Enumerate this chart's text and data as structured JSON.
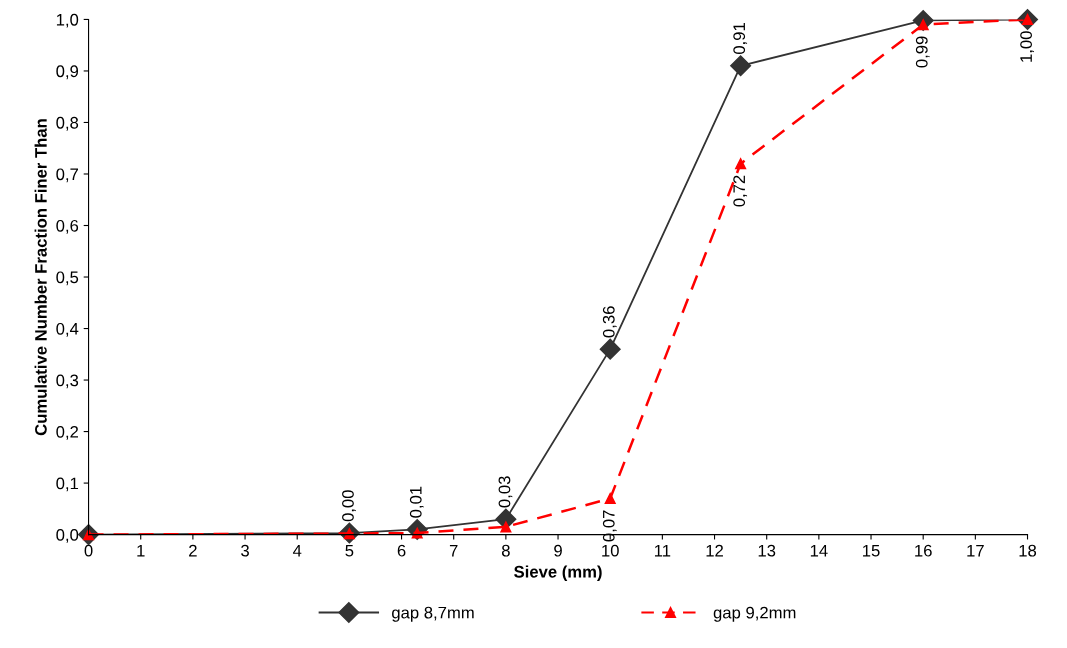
{
  "chart_data": {
    "type": "line",
    "xlabel": "Sieve (mm)",
    "ylabel": "Cumulative Number Fraction Finer Than",
    "xlim": [
      0,
      18
    ],
    "xticks": [
      0,
      1,
      2,
      3,
      4,
      5,
      6,
      7,
      8,
      9,
      10,
      11,
      12,
      13,
      14,
      15,
      16,
      17,
      18
    ],
    "ylim": [
      0,
      1
    ],
    "yticks": [
      {
        "value": 0,
        "label": "0,0"
      },
      {
        "value": 0.1,
        "label": "0,1"
      },
      {
        "value": 0.2,
        "label": "0,2"
      },
      {
        "value": 0.3,
        "label": "0,3"
      },
      {
        "value": 0.4,
        "label": "0,4"
      },
      {
        "value": 0.5,
        "label": "0,5"
      },
      {
        "value": 0.6,
        "label": "0,6"
      },
      {
        "value": 0.7,
        "label": "0,7"
      },
      {
        "value": 0.8,
        "label": "0,8"
      },
      {
        "value": 0.9,
        "label": "0,9"
      },
      {
        "value": 1,
        "label": "1,0"
      }
    ],
    "grid": false,
    "legend": "bottom",
    "series": [
      {
        "name": "gap 8,7mm",
        "color": "#333333",
        "marker": "diamond",
        "line_style": "solid",
        "x": [
          0,
          5,
          6.3,
          8,
          10,
          12.5,
          16,
          18
        ],
        "values": [
          0,
          0.003,
          0.01,
          0.03,
          0.36,
          0.91,
          0.998,
          1.0
        ],
        "value_labels": [
          null,
          "0,00",
          "0,01",
          "0,03",
          "0,36",
          "0,91",
          null,
          null
        ]
      },
      {
        "name": "gap 9,2mm",
        "color": "#ff0000",
        "marker": "triangle",
        "line_style": "dashed",
        "x": [
          0,
          5,
          6.3,
          8,
          10,
          12.5,
          16,
          18
        ],
        "values": [
          0,
          0.002,
          0.003,
          0.015,
          0.07,
          0.72,
          0.99,
          1.0
        ],
        "value_labels": [
          null,
          null,
          null,
          null,
          "0,07",
          "0,72",
          "0,99",
          "1,00"
        ]
      }
    ]
  }
}
